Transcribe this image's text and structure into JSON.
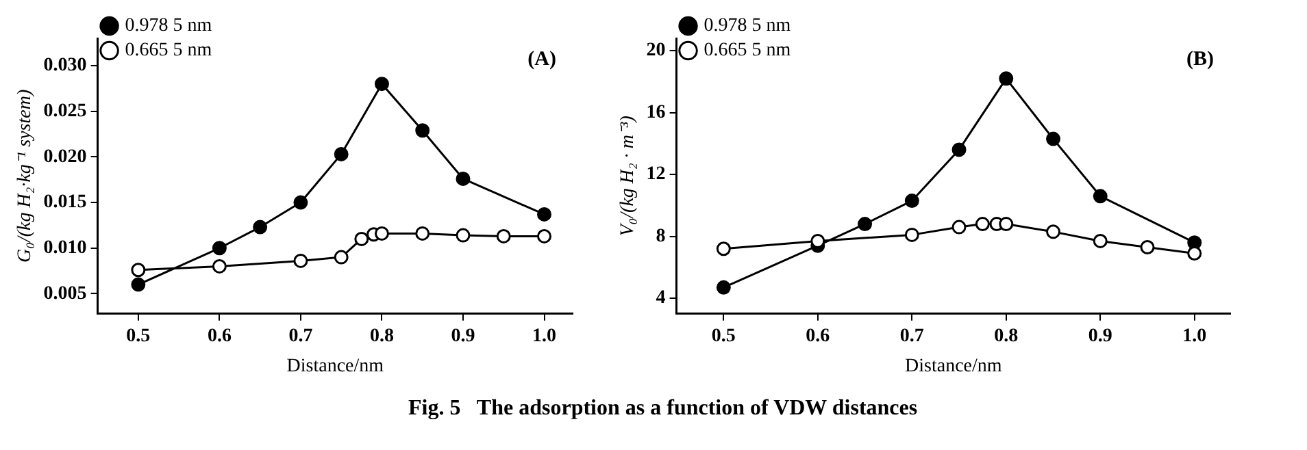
{
  "chart_data": [
    {
      "type": "line",
      "xlabel": "Distance/nm",
      "ylabel": "G₀/(kg H₂·kg⁻¹ system)",
      "xlim": [
        0.45,
        1.035
      ],
      "xticks": [
        {
          "value": 0.5,
          "label": "0.5"
        },
        {
          "value": 0.6,
          "label": "0.6"
        },
        {
          "value": 0.7,
          "label": "0.7"
        },
        {
          "value": 0.8,
          "label": "0.8"
        },
        {
          "value": 0.9,
          "label": "0.9"
        },
        {
          "value": 1.0,
          "label": "1.0"
        }
      ],
      "ylim": [
        0.0028,
        0.033
      ],
      "yticks": [
        {
          "value": 0.005,
          "label": "0.005"
        },
        {
          "value": 0.01,
          "label": "0.010"
        },
        {
          "value": 0.015,
          "label": "0.015"
        },
        {
          "value": 0.02,
          "label": "0.020"
        },
        {
          "value": 0.025,
          "label": "0.025"
        },
        {
          "value": 0.03,
          "label": "0.030"
        }
      ],
      "legend": "top left",
      "marker": "circle",
      "grid": false,
      "annotations": [
        "(A)"
      ],
      "series": [
        {
          "name": "0.978 5 nm",
          "color": "#000000",
          "x": [
            0.5,
            0.6,
            0.65,
            0.7,
            0.75,
            0.8,
            0.85,
            0.9,
            1.0
          ],
          "values": [
            0.006,
            0.01,
            0.0123,
            0.015,
            0.0203,
            0.028,
            0.0229,
            0.0176,
            0.0137
          ]
        },
        {
          "name": "0.665 5 nm",
          "color": "#000000",
          "x": [
            0.5,
            0.6,
            0.7,
            0.75,
            0.775,
            0.79,
            0.8,
            0.85,
            0.9,
            0.95,
            1.0
          ],
          "values": [
            0.0076,
            0.008,
            0.0086,
            0.009,
            0.011,
            0.0115,
            0.0116,
            0.0116,
            0.0114,
            0.0113,
            0.0113
          ]
        }
      ]
    },
    {
      "type": "line",
      "xlabel": "Distance/nm",
      "ylabel": "V₀/(kg H₂ · m⁻³)",
      "xlim": [
        0.45,
        1.038
      ],
      "xticks": [
        {
          "value": 0.5,
          "label": "0.5"
        },
        {
          "value": 0.6,
          "label": "0.6"
        },
        {
          "value": 0.7,
          "label": "0.7"
        },
        {
          "value": 0.8,
          "label": "0.8"
        },
        {
          "value": 0.9,
          "label": "0.9"
        },
        {
          "value": 1.0,
          "label": "1.0"
        }
      ],
      "ylim": [
        3,
        20.8
      ],
      "yticks": [
        4,
        8,
        12,
        16,
        20
      ],
      "legend": "top left",
      "marker": "circle",
      "grid": false,
      "annotations": [
        "(B)",
        "Fig. 5   The adsorption as a function of VDW distances"
      ],
      "series": [
        {
          "name": "0.978 5 nm",
          "color": "#000000",
          "x": [
            0.5,
            0.6,
            0.65,
            0.7,
            0.75,
            0.8,
            0.85,
            0.9,
            1.0
          ],
          "values": [
            4.7,
            7.4,
            8.8,
            10.3,
            13.6,
            18.2,
            14.3,
            10.6,
            7.6
          ]
        },
        {
          "name": "0.665 5 nm",
          "color": "#000000",
          "x": [
            0.5,
            0.6,
            0.7,
            0.75,
            0.775,
            0.79,
            0.8,
            0.85,
            0.9,
            0.95,
            1.0
          ],
          "values": [
            7.2,
            7.7,
            8.1,
            8.6,
            8.8,
            8.8,
            8.8,
            8.3,
            7.7,
            7.3,
            6.9
          ]
        }
      ]
    }
  ]
}
